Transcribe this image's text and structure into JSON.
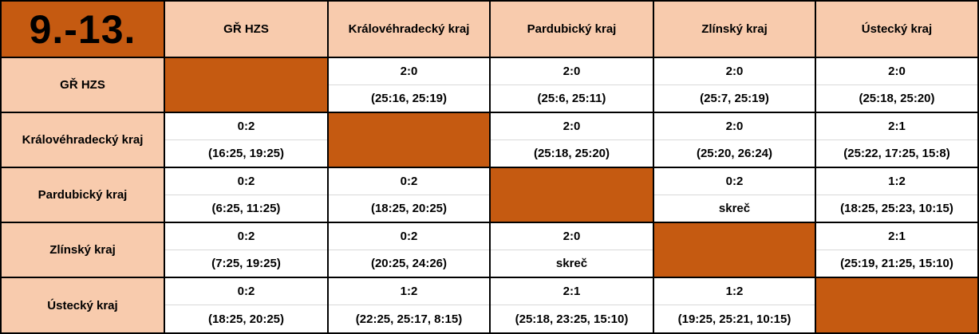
{
  "header": {
    "corner": "9.-13.",
    "columns": [
      "GŘ HZS",
      "Královéhradecký kraj",
      "Pardubický kraj",
      "Zlínský kraj",
      "Ústecký kraj"
    ]
  },
  "table": {
    "rows": [
      {
        "name": "GŘ HZS",
        "cells": [
          null,
          {
            "score": "2:0",
            "sets": "(25:16, 25:19)"
          },
          {
            "score": "2:0",
            "sets": "(25:6, 25:11)"
          },
          {
            "score": "2:0",
            "sets": "(25:7, 25:19)"
          },
          {
            "score": "2:0",
            "sets": "(25:18, 25:20)"
          }
        ]
      },
      {
        "name": "Královéhradecký kraj",
        "cells": [
          {
            "score": "0:2",
            "sets": "(16:25, 19:25)"
          },
          null,
          {
            "score": "2:0",
            "sets": "(25:18, 25:20)"
          },
          {
            "score": "2:0",
            "sets": "(25:20, 26:24)"
          },
          {
            "score": "2:1",
            "sets": "(25:22, 17:25, 15:8)"
          }
        ]
      },
      {
        "name": "Pardubický kraj",
        "cells": [
          {
            "score": "0:2",
            "sets": "(6:25, 11:25)"
          },
          {
            "score": "0:2",
            "sets": "(18:25, 20:25)"
          },
          null,
          {
            "score": "0:2",
            "sets": "skreč"
          },
          {
            "score": "1:2",
            "sets": "(18:25, 25:23, 10:15)"
          }
        ]
      },
      {
        "name": "Zlínský kraj",
        "cells": [
          {
            "score": "0:2",
            "sets": "(7:25, 19:25)"
          },
          {
            "score": "0:2",
            "sets": "(20:25, 24:26)"
          },
          {
            "score": "2:0",
            "sets": "skreč"
          },
          null,
          {
            "score": "2:1",
            "sets": "(25:19, 21:25, 15:10)"
          }
        ]
      },
      {
        "name": "Ústecký kraj",
        "cells": [
          {
            "score": "0:2",
            "sets": "(18:25, 20:25)"
          },
          {
            "score": "1:2",
            "sets": "(22:25, 25:17, 8:15)"
          },
          {
            "score": "2:1",
            "sets": "(25:18, 23:25, 15:10)"
          },
          {
            "score": "1:2",
            "sets": "(19:25, 25:21, 10:15)"
          },
          null
        ]
      }
    ]
  }
}
